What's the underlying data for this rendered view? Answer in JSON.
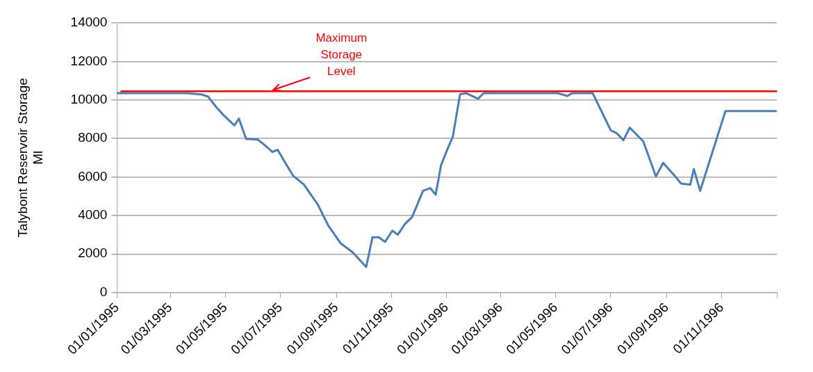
{
  "chart_data": {
    "type": "line",
    "ylabel": "Talybont Reservoir Storage\nMl",
    "x": [
      "1995-01-01",
      "1995-03-20",
      "1995-04-05",
      "1995-04-12",
      "1995-04-21",
      "1995-04-29",
      "1995-05-11",
      "1995-05-16",
      "1995-05-24",
      "1995-06-06",
      "1995-06-14",
      "1995-06-22",
      "1995-06-28",
      "1995-07-07",
      "1995-07-15",
      "1995-07-27",
      "1995-08-11",
      "1995-08-23",
      "1995-09-06",
      "1995-09-19",
      "1995-10-04",
      "1995-10-11",
      "1995-10-18",
      "1995-10-25",
      "1995-11-02",
      "1995-11-08",
      "1995-11-16",
      "1995-11-24",
      "1995-12-06",
      "1995-12-14",
      "1995-12-20",
      "1995-12-26",
      "1996-01-02",
      "1996-01-08",
      "1996-01-16",
      "1996-01-23",
      "1996-02-05",
      "1996-02-11",
      "1996-05-03",
      "1996-05-14",
      "1996-05-19",
      "1996-06-11",
      "1996-07-01",
      "1996-07-08",
      "1996-07-15",
      "1996-07-22",
      "1996-08-06",
      "1996-08-20",
      "1996-08-28",
      "1996-09-07",
      "1996-09-17",
      "1996-09-27",
      "1996-10-01",
      "1996-10-08",
      "1996-11-05",
      "1996-12-31"
    ],
    "series": [
      {
        "color": "#4a7ebb",
        "values": [
          10350,
          10350,
          10280,
          10170,
          9620,
          9210,
          8680,
          9030,
          7980,
          7940,
          7640,
          7300,
          7410,
          6690,
          6070,
          5610,
          4600,
          3480,
          2540,
          2090,
          1320,
          2870,
          2870,
          2630,
          3210,
          3000,
          3560,
          3930,
          5280,
          5420,
          5080,
          6620,
          7440,
          8090,
          10300,
          10350,
          10060,
          10350,
          10350,
          10210,
          10350,
          10350,
          8420,
          8260,
          7910,
          8560,
          7850,
          6030,
          6730,
          6210,
          5660,
          5600,
          6410,
          5280,
          9420,
          9420
        ]
      }
    ],
    "xlim": [
      "1995-01-01",
      "1997-01-01"
    ],
    "xticks": [
      {
        "value": "1995-01-01",
        "label": "01/01/1995"
      },
      {
        "value": "1995-03-01",
        "label": "01/03/1995"
      },
      {
        "value": "1995-05-01",
        "label": "01/05/1995"
      },
      {
        "value": "1995-07-01",
        "label": "01/07/1995"
      },
      {
        "value": "1995-09-01",
        "label": "01/09/1995"
      },
      {
        "value": "1995-11-01",
        "label": "01/11/1995"
      },
      {
        "value": "1996-01-01",
        "label": "01/01/1996"
      },
      {
        "value": "1996-03-01",
        "label": "01/03/1996"
      },
      {
        "value": "1996-05-01",
        "label": "01/05/1996"
      },
      {
        "value": "1996-07-01",
        "label": "01/07/1996"
      },
      {
        "value": "1996-09-01",
        "label": "01/09/1996"
      },
      {
        "value": "1996-11-01",
        "label": "01/11/1996"
      },
      {
        "value": "1997-01-01",
        "label": null
      }
    ],
    "ylim": [
      0,
      14000
    ],
    "yticks": [
      0,
      2000,
      4000,
      6000,
      8000,
      10000,
      12000,
      14000
    ],
    "ref_lines": [
      {
        "axis": "y",
        "value": 10450,
        "label": "Maximum Storage Level",
        "color": "#ff0000"
      }
    ],
    "grid": "y",
    "legend": false,
    "marker": "none",
    "line_style": "solid"
  }
}
